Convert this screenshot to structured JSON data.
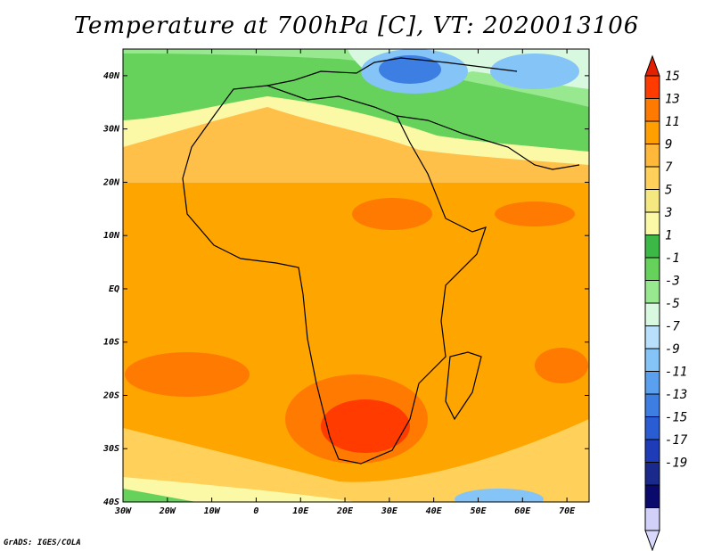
{
  "title": "Temperature at 700hPa [C], VT: 2020013106",
  "credit": "GrADS: IGES/COLA",
  "map": {
    "lat_labels": [
      "40N",
      "30N",
      "20N",
      "10N",
      "EQ",
      "10S",
      "20S",
      "30S",
      "40S"
    ],
    "lat_values": [
      40,
      30,
      20,
      10,
      0,
      -10,
      -20,
      -30,
      -40
    ],
    "lon_labels": [
      "30W",
      "20W",
      "10W",
      "0",
      "10E",
      "20E",
      "30E",
      "40E",
      "50E",
      "60E",
      "70E"
    ],
    "lon_values": [
      -30,
      -20,
      -10,
      0,
      10,
      20,
      30,
      40,
      50,
      60,
      70
    ],
    "lon_range": [
      -30,
      75
    ],
    "lat_range": [
      -40,
      45
    ]
  },
  "colorbar": {
    "labels": [
      "15",
      "13",
      "11",
      "9",
      "7",
      "5",
      "3",
      "1",
      "-1",
      "-3",
      "-5",
      "-7",
      "-9",
      "-11",
      "-13",
      "-15",
      "-17",
      "-19"
    ],
    "colors": [
      "#ff3b00",
      "#ff7a00",
      "#ff9f00",
      "#ffb83a",
      "#ffd05a",
      "#f5e880",
      "#fbf8a6",
      "#3cb846",
      "#66d25c",
      "#98e890",
      "#d8f8e0",
      "#b8e0fc",
      "#84c4f6",
      "#5aa0ee",
      "#3c7ee2",
      "#2a5cd4",
      "#1e3cb8",
      "#1a2a8c",
      "#0a0a6c",
      "#d0d0f8"
    ],
    "top_arrow_color": "#e52000",
    "bottom_arrow_color": "#d8d8fc"
  }
}
